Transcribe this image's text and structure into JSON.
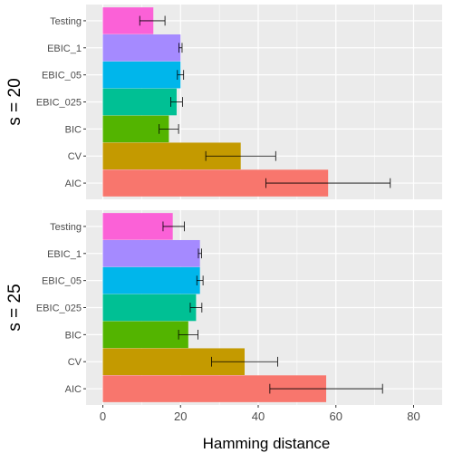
{
  "chart_data": {
    "type": "bar",
    "orientation": "horizontal",
    "xlabel": "Hamming distance",
    "xlim": [
      0,
      80
    ],
    "x_ticks": [
      0,
      20,
      40,
      60,
      80
    ],
    "grid": true,
    "legend": "none",
    "categories": [
      "AIC",
      "CV",
      "BIC",
      "EBIC_025",
      "EBIC_05",
      "EBIC_1",
      "Testing"
    ],
    "colors": [
      "#F8766D",
      "#C49A00",
      "#53B400",
      "#00C094",
      "#00B6EB",
      "#A58AFF",
      "#FB61D7"
    ],
    "facets": [
      {
        "label": "s = 20",
        "values": [
          58,
          35.5,
          17,
          19,
          20,
          20,
          13
        ],
        "error_low": [
          42,
          26.5,
          14.5,
          17.5,
          19.2,
          19.6,
          9.5
        ],
        "error_high": [
          74,
          44.5,
          19.5,
          20.5,
          20.8,
          20.4,
          16
        ]
      },
      {
        "label": "s = 25",
        "values": [
          57.5,
          36.5,
          22,
          24,
          25,
          25,
          18
        ],
        "error_low": [
          43,
          28,
          19.5,
          22.5,
          24.2,
          24.6,
          15.5
        ],
        "error_high": [
          72,
          45,
          24.5,
          25.5,
          25.8,
          25.4,
          21
        ]
      }
    ]
  }
}
